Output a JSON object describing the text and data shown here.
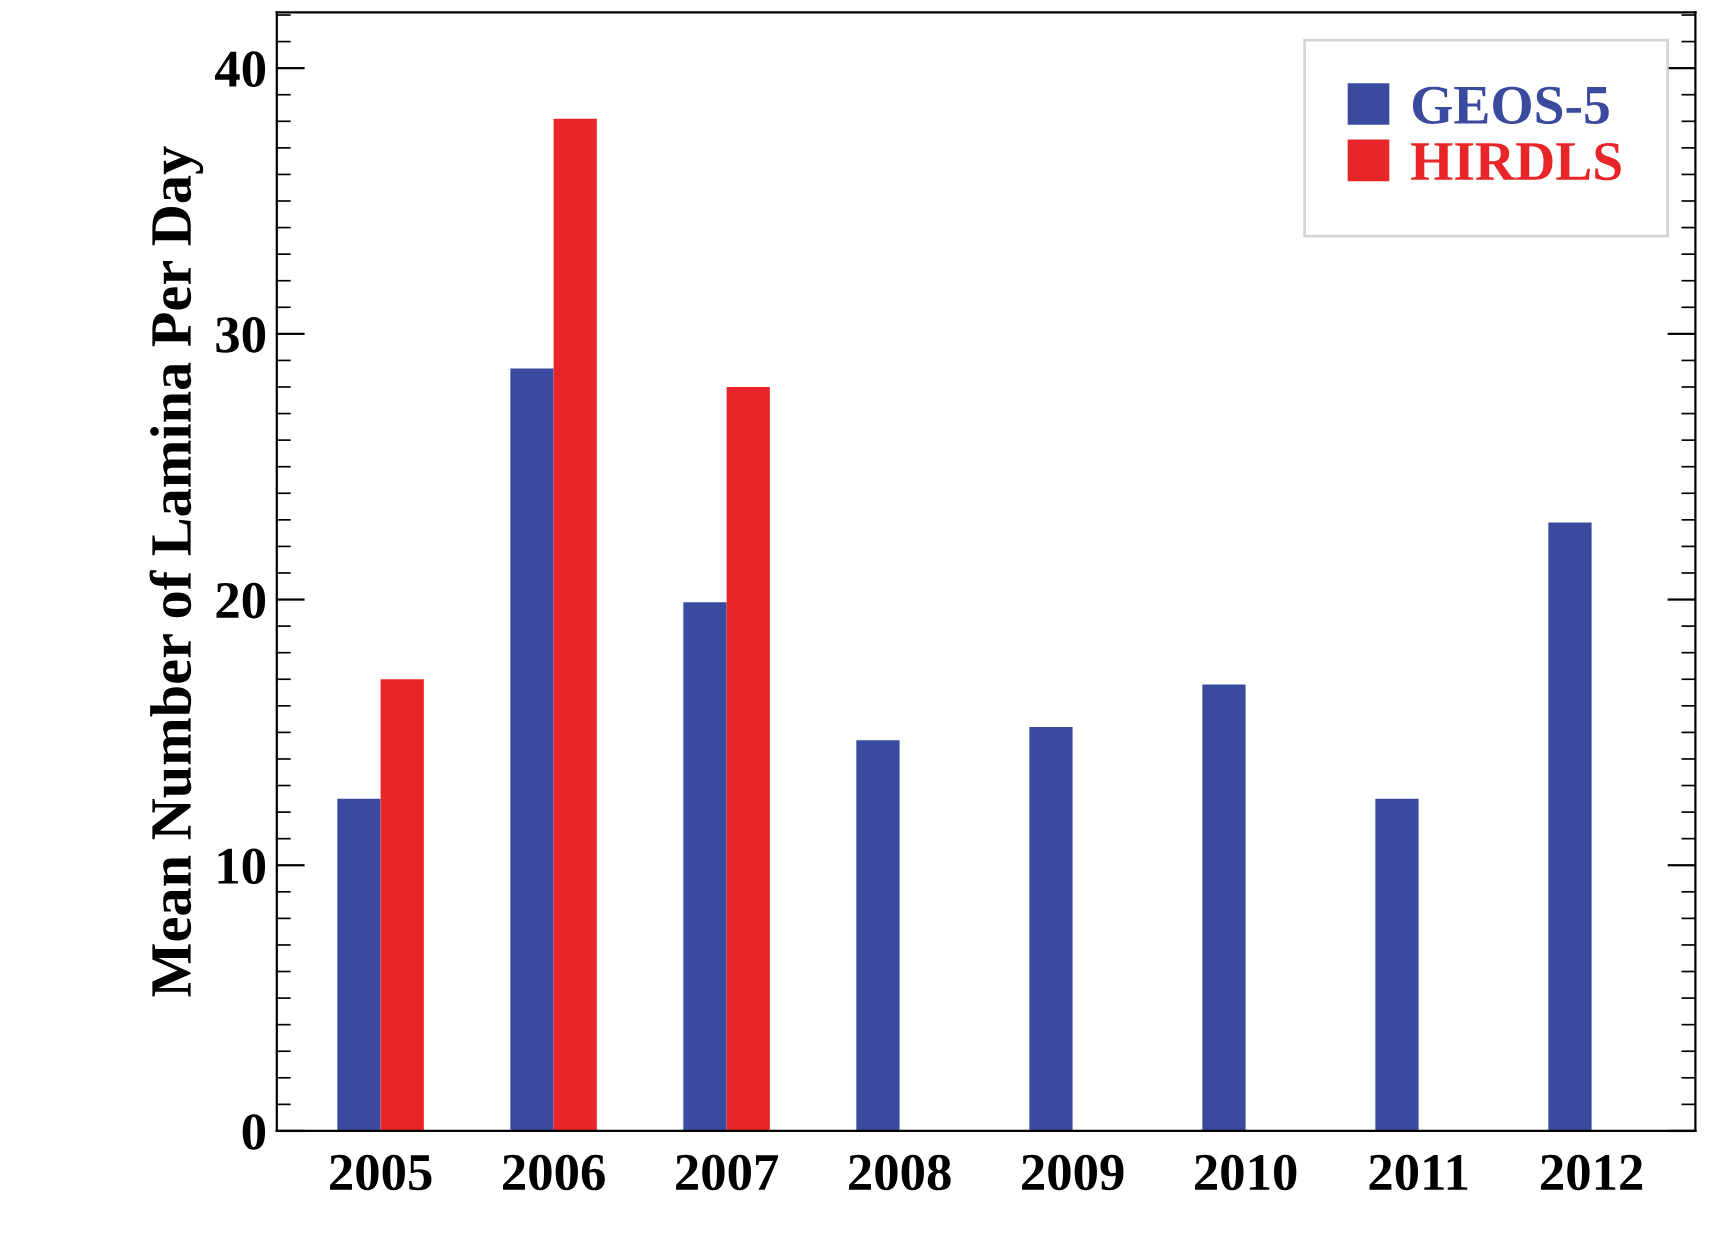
{
  "chart_data": {
    "type": "bar",
    "ylabel": "Mean Number of Lamina Per Day",
    "categories": [
      "2005",
      "2006",
      "2007",
      "2008",
      "2009",
      "2010",
      "2011",
      "2012"
    ],
    "series": [
      {
        "name": "GEOS-5",
        "color": "#3a4a9e",
        "values": [
          12.5,
          28.7,
          19.9,
          14.7,
          15.2,
          16.8,
          12.5,
          22.9
        ]
      },
      {
        "name": "HIRDLS",
        "color": "#e8262a",
        "values": [
          17.0,
          38.1,
          28.0,
          null,
          null,
          null,
          null,
          null
        ]
      }
    ],
    "ylim": [
      0,
      42.1
    ],
    "yticks": [
      0,
      10,
      20,
      30,
      40
    ],
    "grid": false,
    "legend": "top right"
  }
}
